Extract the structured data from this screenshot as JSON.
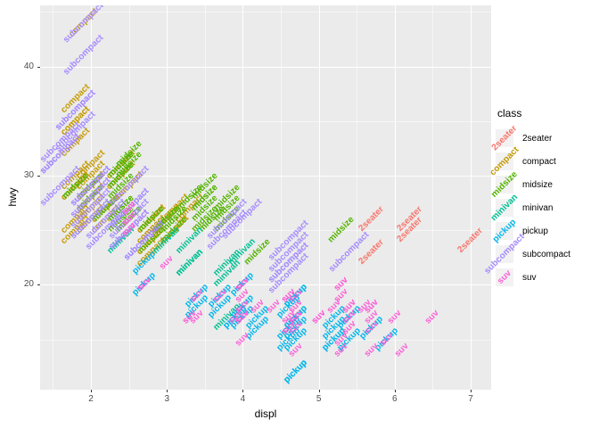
{
  "legend": {
    "title": "class"
  },
  "chart_data": {
    "type": "scatter",
    "geom": "text-labels",
    "title": "",
    "xlabel": "displ",
    "ylabel": "hwy",
    "x_ticks": [
      2,
      3,
      4,
      5,
      6,
      7
    ],
    "x_minor_ticks": [
      1.5,
      2.5,
      3.5,
      4.5,
      5.5,
      6.5
    ],
    "y_ticks": [
      20,
      30,
      40
    ],
    "y_minor_ticks": [
      15,
      25,
      35,
      45
    ],
    "xlim": [
      1.33,
      7.27
    ],
    "ylim": [
      10.4,
      45.6
    ],
    "label_angle": 45,
    "panel_background": "#EBEBEB",
    "gridline_color": "#FFFFFF",
    "classes": [
      {
        "name": "2seater",
        "color": "#F8766D"
      },
      {
        "name": "compact",
        "color": "#C49A00"
      },
      {
        "name": "midsize",
        "color": "#53B400"
      },
      {
        "name": "minivan",
        "color": "#00C094"
      },
      {
        "name": "pickup",
        "color": "#00B6EB"
      },
      {
        "name": "subcompact",
        "color": "#A58AFF"
      },
      {
        "name": "suv",
        "color": "#FB61D7"
      }
    ],
    "points": [
      [
        1.8,
        29,
        1
      ],
      [
        1.8,
        29,
        1
      ],
      [
        2,
        31,
        1
      ],
      [
        2,
        30,
        1
      ],
      [
        2.8,
        26,
        1
      ],
      [
        2.8,
        26,
        1
      ],
      [
        3.1,
        27,
        1
      ],
      [
        1.8,
        26,
        1
      ],
      [
        1.8,
        25,
        1
      ],
      [
        2,
        28,
        1
      ],
      [
        2,
        27,
        1
      ],
      [
        2.8,
        25,
        1
      ],
      [
        2.8,
        25,
        1
      ],
      [
        3.1,
        25,
        1
      ],
      [
        3.1,
        25,
        1
      ],
      [
        2.2,
        26,
        1
      ],
      [
        2.2,
        27,
        1
      ],
      [
        2.4,
        30,
        1
      ],
      [
        2.4,
        31,
        1
      ],
      [
        3,
        26,
        1
      ],
      [
        3,
        26,
        1
      ],
      [
        3.3,
        27,
        1
      ],
      [
        1.8,
        30,
        1
      ],
      [
        1.8,
        33,
        1
      ],
      [
        1.8,
        35,
        1
      ],
      [
        1.8,
        37,
        1
      ],
      [
        1.8,
        35,
        1
      ],
      [
        2,
        29,
        1
      ],
      [
        2,
        29,
        1
      ],
      [
        2,
        28,
        1
      ],
      [
        2,
        29,
        1
      ],
      [
        2.8,
        24,
        1
      ],
      [
        1.9,
        44,
        1
      ],
      [
        2,
        29,
        1
      ],
      [
        2,
        26,
        1
      ],
      [
        2,
        29,
        1
      ],
      [
        2,
        28,
        1
      ],
      [
        2.5,
        29,
        1
      ],
      [
        2.5,
        29,
        1
      ],
      [
        2.8,
        23,
        1
      ],
      [
        2.8,
        24,
        1
      ],
      [
        2.8,
        24,
        2
      ],
      [
        3.1,
        25,
        2
      ],
      [
        4.2,
        23,
        2
      ],
      [
        2.4,
        27,
        2
      ],
      [
        2.4,
        30,
        2
      ],
      [
        3.1,
        26,
        2
      ],
      [
        3.5,
        29,
        2
      ],
      [
        3.6,
        26,
        2
      ],
      [
        2.4,
        26,
        2
      ],
      [
        2.4,
        27,
        2
      ],
      [
        2.4,
        30,
        2
      ],
      [
        2.4,
        31,
        2
      ],
      [
        2.5,
        26,
        2
      ],
      [
        2.5,
        26,
        2
      ],
      [
        3.3,
        28,
        2
      ],
      [
        2.4,
        29,
        2
      ],
      [
        2.4,
        27,
        2
      ],
      [
        2.5,
        31,
        2
      ],
      [
        2.5,
        32,
        2
      ],
      [
        3.5,
        27,
        2
      ],
      [
        3.5,
        26,
        2
      ],
      [
        3,
        26,
        2
      ],
      [
        3,
        26,
        2
      ],
      [
        3.5,
        28,
        2
      ],
      [
        3.1,
        26,
        2
      ],
      [
        3.8,
        26,
        2
      ],
      [
        3.8,
        27,
        2
      ],
      [
        3.8,
        28,
        2
      ],
      [
        5.3,
        25,
        2
      ],
      [
        2.2,
        27,
        2
      ],
      [
        2.2,
        27,
        2
      ],
      [
        2.4,
        30,
        2
      ],
      [
        2.4,
        31,
        2
      ],
      [
        3,
        26,
        2
      ],
      [
        3,
        26,
        2
      ],
      [
        3.5,
        28,
        2
      ],
      [
        1.8,
        29,
        2
      ],
      [
        1.8,
        29,
        2
      ],
      [
        2,
        28,
        2
      ],
      [
        2,
        29,
        2
      ],
      [
        2.8,
        26,
        2
      ],
      [
        2.8,
        26,
        2
      ],
      [
        3.6,
        26,
        2
      ],
      [
        2.4,
        24,
        3
      ],
      [
        3,
        24,
        3
      ],
      [
        3.3,
        22,
        3
      ],
      [
        3.3,
        22,
        3
      ],
      [
        3.3,
        22,
        3
      ],
      [
        3.3,
        24,
        3
      ],
      [
        3.3,
        22,
        3
      ],
      [
        3.8,
        17,
        3
      ],
      [
        3.8,
        22,
        3
      ],
      [
        3.8,
        21,
        3
      ],
      [
        4,
        23,
        3
      ],
      [
        3.7,
        19,
        4
      ],
      [
        3.7,
        18,
        4
      ],
      [
        3.9,
        17,
        4
      ],
      [
        3.9,
        17,
        4
      ],
      [
        4.7,
        19,
        4
      ],
      [
        4.7,
        19,
        4
      ],
      [
        4.7,
        12,
        4
      ],
      [
        5.2,
        17,
        4
      ],
      [
        5.2,
        15,
        4
      ],
      [
        4.7,
        17,
        4
      ],
      [
        4.7,
        15,
        4
      ],
      [
        4.7,
        12,
        4
      ],
      [
        4.7,
        17,
        4
      ],
      [
        4.7,
        16,
        4
      ],
      [
        4.7,
        12,
        4
      ],
      [
        5.2,
        16,
        4
      ],
      [
        5.2,
        15,
        4
      ],
      [
        5.7,
        16,
        4
      ],
      [
        5.9,
        15,
        4
      ],
      [
        4.2,
        17,
        4
      ],
      [
        4.2,
        16,
        4
      ],
      [
        4.6,
        18,
        4
      ],
      [
        4.6,
        15,
        4
      ],
      [
        4.6,
        16,
        4
      ],
      [
        5.4,
        17,
        4
      ],
      [
        5.4,
        15,
        4
      ],
      [
        2.7,
        20,
        4
      ],
      [
        2.7,
        22,
        4
      ],
      [
        3.4,
        19,
        4
      ],
      [
        3.4,
        18,
        4
      ],
      [
        4,
        20,
        4
      ],
      [
        4,
        18,
        4
      ],
      [
        4,
        17,
        4
      ],
      [
        3.8,
        26,
        5
      ],
      [
        3.8,
        25,
        5
      ],
      [
        4,
        26,
        5
      ],
      [
        4.6,
        24,
        5
      ],
      [
        4.6,
        21,
        5
      ],
      [
        4.6,
        22,
        5
      ],
      [
        4.6,
        23,
        5
      ],
      [
        4.6,
        22,
        5
      ],
      [
        5.4,
        23,
        5
      ],
      [
        1.6,
        33,
        5
      ],
      [
        1.6,
        32,
        5
      ],
      [
        1.6,
        32,
        5
      ],
      [
        1.6,
        29,
        5
      ],
      [
        1.6,
        32,
        5
      ],
      [
        1.8,
        34,
        5
      ],
      [
        1.8,
        36,
        5
      ],
      [
        1.8,
        36,
        5
      ],
      [
        2,
        29,
        5
      ],
      [
        2,
        26,
        5
      ],
      [
        2,
        29,
        5
      ],
      [
        2,
        28,
        5
      ],
      [
        2,
        27,
        5
      ],
      [
        2.7,
        24,
        5
      ],
      [
        2.7,
        24,
        5
      ],
      [
        2.7,
        24,
        5
      ],
      [
        2.2,
        26,
        5
      ],
      [
        2.2,
        25,
        5
      ],
      [
        2.5,
        25,
        5
      ],
      [
        2.5,
        27,
        5
      ],
      [
        2.5,
        25,
        5
      ],
      [
        2.5,
        27,
        5
      ],
      [
        2.5,
        25,
        5
      ],
      [
        2.5,
        26,
        5
      ],
      [
        1.9,
        44,
        5
      ],
      [
        1.9,
        41,
        5
      ],
      [
        2,
        29,
        5
      ],
      [
        2,
        26,
        5
      ],
      [
        2,
        28,
        5
      ],
      [
        2.5,
        29,
        5
      ],
      [
        5.3,
        20,
        6
      ],
      [
        5.3,
        15,
        6
      ],
      [
        5.3,
        20,
        6
      ],
      [
        5.7,
        17,
        6
      ],
      [
        6,
        17,
        6
      ],
      [
        5.3,
        14,
        6
      ],
      [
        5.3,
        19,
        6
      ],
      [
        5.7,
        14,
        6
      ],
      [
        6.5,
        17,
        6
      ],
      [
        3.9,
        17,
        6
      ],
      [
        4.7,
        17,
        6
      ],
      [
        4.7,
        17,
        6
      ],
      [
        4.7,
        16,
        6
      ],
      [
        5.2,
        18,
        6
      ],
      [
        5.7,
        16,
        6
      ],
      [
        5.9,
        15,
        6
      ],
      [
        4.6,
        17,
        6
      ],
      [
        5.4,
        17,
        6
      ],
      [
        5.4,
        18,
        6
      ],
      [
        4,
        17,
        6
      ],
      [
        4,
        17,
        6
      ],
      [
        4,
        18,
        6
      ],
      [
        4,
        17,
        6
      ],
      [
        4.6,
        19,
        6
      ],
      [
        5,
        17,
        6
      ],
      [
        3,
        22,
        6
      ],
      [
        3.7,
        19,
        6
      ],
      [
        4,
        20,
        6
      ],
      [
        4.7,
        17,
        6
      ],
      [
        4.7,
        19,
        6
      ],
      [
        4.7,
        14,
        6
      ],
      [
        5.7,
        18,
        6
      ],
      [
        6.1,
        14,
        6
      ],
      [
        4,
        15,
        6
      ],
      [
        4.2,
        18,
        6
      ],
      [
        4.4,
        18,
        6
      ],
      [
        4.6,
        16,
        6
      ],
      [
        5.4,
        17,
        6
      ],
      [
        5.4,
        16,
        6
      ],
      [
        5.4,
        18,
        6
      ],
      [
        4,
        17,
        6
      ],
      [
        4,
        19,
        6
      ],
      [
        4.6,
        19,
        6
      ],
      [
        5,
        17,
        6
      ],
      [
        3.3,
        17,
        6
      ],
      [
        3.3,
        17,
        6
      ],
      [
        4,
        20,
        6
      ],
      [
        5.6,
        18,
        6
      ],
      [
        2.5,
        26,
        6
      ],
      [
        2.5,
        27,
        6
      ],
      [
        2.5,
        25,
        6
      ],
      [
        2.5,
        27,
        6
      ],
      [
        2.5,
        25,
        6
      ],
      [
        2.5,
        26,
        6
      ],
      [
        2.7,
        20,
        6
      ],
      [
        2.7,
        20,
        6
      ],
      [
        3.4,
        19,
        6
      ],
      [
        3.4,
        17,
        6
      ],
      [
        4,
        20,
        6
      ],
      [
        4.7,
        17,
        6
      ],
      [
        4.7,
        18,
        6
      ],
      [
        5.7,
        18,
        6
      ],
      [
        5.7,
        26,
        0
      ],
      [
        5.7,
        23,
        0
      ],
      [
        6.2,
        26,
        0
      ],
      [
        6.2,
        25,
        0
      ],
      [
        7,
        24,
        0
      ]
    ]
  }
}
